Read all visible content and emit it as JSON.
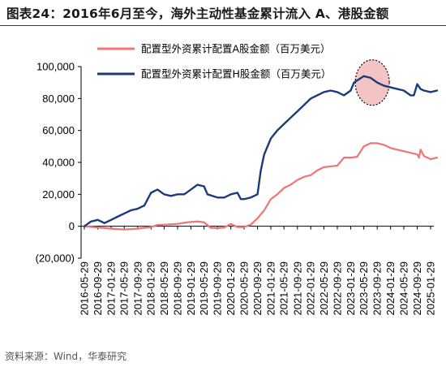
{
  "figure": {
    "title": "图表24：2016年6月至今，海外主动性基金累计流入 A、港股金额",
    "source": "资料来源：Wind，华泰研究"
  },
  "chart_data": {
    "type": "line",
    "title": "图表24：2016年6月至今，海外主动性基金累计流入 A、港股金额",
    "xlabel": "",
    "ylabel": "",
    "ylim": [
      -20000,
      100000
    ],
    "y_ticks": [
      -20000,
      0,
      20000,
      40000,
      60000,
      80000,
      100000
    ],
    "y_tick_labels": [
      "(20,000)",
      "0",
      "20,000",
      "40,000",
      "60,000",
      "80,000",
      "100,000"
    ],
    "x_tick_labels": [
      "2016-05-29",
      "2016-09-29",
      "2017-01-29",
      "2017-05-29",
      "2017-09-29",
      "2018-01-29",
      "2018-05-29",
      "2018-09-29",
      "2019-01-29",
      "2019-05-29",
      "2019-09-29",
      "2020-01-29",
      "2020-05-29",
      "2020-09-29",
      "2021-01-29",
      "2021-05-29",
      "2021-09-29",
      "2022-01-29",
      "2022-05-29",
      "2022-09-29",
      "2023-01-29",
      "2023-05-29",
      "2023-09-29",
      "2024-01-29",
      "2024-05-29",
      "2024-09-29",
      "2025-01-29"
    ],
    "grid": false,
    "legend_position": "top-left",
    "annotation": "shaded circle highlighting the 2023 peak of the H-share series",
    "series": [
      {
        "name": "配置型外资累计配置A股金额（百万美元）",
        "color": "#f07575",
        "points": [
          [
            "2016-05-29",
            0
          ],
          [
            "2016-09-29",
            -800
          ],
          [
            "2017-01-29",
            -1500
          ],
          [
            "2017-05-29",
            -2000
          ],
          [
            "2017-09-29",
            -1500
          ],
          [
            "2018-01-29",
            -500
          ],
          [
            "2018-03-29",
            800
          ],
          [
            "2018-05-29",
            1000
          ],
          [
            "2018-09-29",
            1500
          ],
          [
            "2018-12-29",
            2500
          ],
          [
            "2019-03-29",
            3000
          ],
          [
            "2019-05-29",
            2500
          ],
          [
            "2019-07-29",
            -1000
          ],
          [
            "2019-09-29",
            -1200
          ],
          [
            "2019-11-29",
            -800
          ],
          [
            "2020-01-29",
            1500
          ],
          [
            "2020-03-29",
            -500
          ],
          [
            "2020-05-29",
            -500
          ],
          [
            "2020-07-29",
            1000
          ],
          [
            "2020-09-29",
            5000
          ],
          [
            "2020-11-29",
            10000
          ],
          [
            "2021-01-29",
            17000
          ],
          [
            "2021-03-29",
            20000
          ],
          [
            "2021-05-29",
            24000
          ],
          [
            "2021-07-29",
            26000
          ],
          [
            "2021-09-29",
            29000
          ],
          [
            "2021-11-29",
            31000
          ],
          [
            "2022-01-29",
            32000
          ],
          [
            "2022-03-29",
            35000
          ],
          [
            "2022-05-29",
            37000
          ],
          [
            "2022-07-29",
            37500
          ],
          [
            "2022-09-29",
            38000
          ],
          [
            "2022-11-29",
            43000
          ],
          [
            "2023-01-29",
            43000
          ],
          [
            "2023-03-29",
            43500
          ],
          [
            "2023-05-29",
            50000
          ],
          [
            "2023-07-29",
            52000
          ],
          [
            "2023-09-29",
            52000
          ],
          [
            "2023-11-29",
            51000
          ],
          [
            "2024-01-29",
            49000
          ],
          [
            "2024-03-29",
            48000
          ],
          [
            "2024-05-29",
            47000
          ],
          [
            "2024-07-29",
            46000
          ],
          [
            "2024-09-29",
            45000
          ],
          [
            "2024-10-15",
            43000
          ],
          [
            "2024-10-29",
            48000
          ],
          [
            "2024-11-29",
            44000
          ],
          [
            "2025-01-29",
            42000
          ],
          [
            "2025-03-29",
            43000
          ]
        ]
      },
      {
        "name": "配置型外资累计配置H股金额（百万美元）",
        "color": "#1b3a7a",
        "points": [
          [
            "2016-05-29",
            0
          ],
          [
            "2016-07-29",
            3000
          ],
          [
            "2016-09-29",
            4000
          ],
          [
            "2016-11-29",
            2000
          ],
          [
            "2017-01-29",
            4000
          ],
          [
            "2017-03-29",
            6000
          ],
          [
            "2017-05-29",
            8000
          ],
          [
            "2017-07-29",
            10000
          ],
          [
            "2017-09-29",
            11000
          ],
          [
            "2017-11-29",
            13000
          ],
          [
            "2018-01-29",
            21000
          ],
          [
            "2018-03-29",
            23000
          ],
          [
            "2018-05-29",
            20000
          ],
          [
            "2018-07-29",
            19000
          ],
          [
            "2018-09-29",
            20000
          ],
          [
            "2018-11-29",
            20000
          ],
          [
            "2019-01-29",
            23000
          ],
          [
            "2019-03-29",
            26000
          ],
          [
            "2019-05-29",
            25000
          ],
          [
            "2019-06-29",
            20000
          ],
          [
            "2019-09-29",
            18000
          ],
          [
            "2019-11-29",
            18000
          ],
          [
            "2020-01-29",
            20000
          ],
          [
            "2020-03-29",
            21000
          ],
          [
            "2020-04-29",
            17000
          ],
          [
            "2020-05-29",
            17000
          ],
          [
            "2020-07-29",
            18000
          ],
          [
            "2020-09-29",
            20000
          ],
          [
            "2020-10-29",
            35000
          ],
          [
            "2020-11-29",
            45000
          ],
          [
            "2021-01-29",
            55000
          ],
          [
            "2021-03-29",
            60000
          ],
          [
            "2021-05-29",
            64000
          ],
          [
            "2021-07-29",
            68000
          ],
          [
            "2021-09-29",
            72000
          ],
          [
            "2021-11-29",
            76000
          ],
          [
            "2022-01-29",
            80000
          ],
          [
            "2022-03-29",
            82000
          ],
          [
            "2022-05-29",
            84000
          ],
          [
            "2022-07-29",
            85000
          ],
          [
            "2022-09-29",
            84000
          ],
          [
            "2022-11-29",
            82000
          ],
          [
            "2023-01-29",
            85000
          ],
          [
            "2023-02-29",
            90000
          ],
          [
            "2023-05-29",
            94000
          ],
          [
            "2023-07-29",
            93000
          ],
          [
            "2023-09-29",
            90000
          ],
          [
            "2023-11-29",
            88000
          ],
          [
            "2024-01-29",
            87000
          ],
          [
            "2024-03-29",
            86000
          ],
          [
            "2024-05-29",
            85000
          ],
          [
            "2024-07-29",
            82000
          ],
          [
            "2024-08-29",
            82000
          ],
          [
            "2024-09-29",
            89000
          ],
          [
            "2024-10-29",
            86000
          ],
          [
            "2024-11-29",
            85000
          ],
          [
            "2025-01-29",
            84000
          ],
          [
            "2025-03-29",
            85000
          ]
        ]
      }
    ]
  }
}
